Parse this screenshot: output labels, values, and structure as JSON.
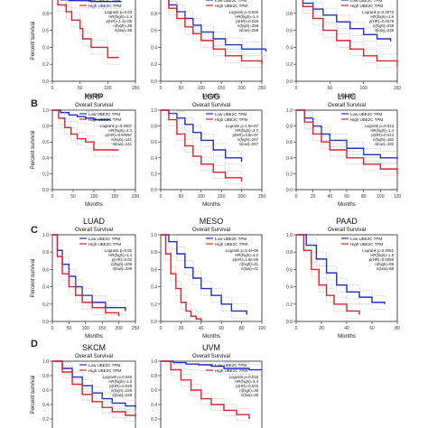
{
  "figure": {
    "panel_letters": [
      "B",
      "C",
      "D"
    ],
    "colors": {
      "low": "#1f2fbf",
      "high": "#d8232a",
      "ci": "#999999",
      "axis": "#222222"
    }
  },
  "chart_data": [
    {
      "type": "line",
      "panel": "A",
      "title": "",
      "subtitle": "",
      "xlabel": "Months",
      "ylabel": "Percent survival",
      "xlim": [
        0,
        150
      ],
      "ylim": [
        0,
        1
      ],
      "xticks": [
        0,
        50,
        100,
        150
      ],
      "legend": "top-right",
      "stats": [
        "Logrank p=0.03",
        "HR(high)=1.4",
        "p(HR)=1.1e-05",
        "n(high)=38",
        "n(low)=38"
      ],
      "series": [
        {
          "name": "Low UBE2C TPM",
          "color": "#1f2fbf",
          "x": [
            0,
            15,
            30,
            50,
            70,
            90,
            110,
            125
          ],
          "y": [
            1.0,
            0.96,
            0.95,
            0.95,
            0.94,
            0.94,
            0.94,
            0.94
          ]
        },
        {
          "name": "High UBE2C TPM",
          "color": "#d8232a",
          "x": [
            0,
            10,
            25,
            35,
            50,
            55,
            70,
            90,
            100,
            120
          ],
          "y": [
            1.0,
            0.9,
            0.82,
            0.72,
            0.62,
            0.5,
            0.4,
            0.4,
            0.28,
            0.28
          ]
        }
      ]
    },
    {
      "type": "line",
      "panel": "A",
      "title": "",
      "subtitle": "",
      "xlabel": "Months",
      "ylabel": "",
      "xlim": [
        0,
        250
      ],
      "ylim": [
        0,
        1
      ],
      "xticks": [
        0,
        50,
        100,
        150,
        200,
        250
      ],
      "legend": "top-right",
      "stats": [
        "Logrank p=0.026",
        "HR(high)=1.4",
        "p(HR)=0.028",
        "n(high)=258",
        "n(low)=258"
      ],
      "series": [
        {
          "name": "Low UBE2C TPM",
          "color": "#1f2fbf",
          "x": [
            0,
            20,
            40,
            60,
            80,
            100,
            130,
            160,
            200,
            260
          ],
          "y": [
            1.0,
            0.9,
            0.82,
            0.74,
            0.66,
            0.58,
            0.5,
            0.43,
            0.38,
            0.35
          ]
        },
        {
          "name": "High UBE2C TPM",
          "color": "#d8232a",
          "x": [
            0,
            20,
            40,
            60,
            80,
            100,
            130,
            160,
            200,
            250
          ],
          "y": [
            1.0,
            0.86,
            0.74,
            0.64,
            0.56,
            0.48,
            0.38,
            0.3,
            0.24,
            0.2
          ]
        }
      ]
    },
    {
      "type": "line",
      "panel": "A",
      "title": "",
      "subtitle": "",
      "xlabel": "Months",
      "ylabel": "",
      "xlim": [
        0,
        150
      ],
      "ylim": [
        0,
        1
      ],
      "xticks": [
        0,
        50,
        100,
        150
      ],
      "legend": "top-right",
      "stats": [
        "Logrank p=0.0073",
        "HR(high)=1.6",
        "p(HR)=0.0079",
        "n(high)=238",
        "n(low)=238"
      ],
      "series": [
        {
          "name": "Low UBE2C TPM",
          "color": "#1f2fbf",
          "x": [
            0,
            10,
            25,
            40,
            60,
            80,
            100,
            120,
            140
          ],
          "y": [
            1.0,
            0.92,
            0.85,
            0.78,
            0.7,
            0.62,
            0.55,
            0.5,
            0.47
          ]
        },
        {
          "name": "High UBE2C TPM",
          "color": "#d8232a",
          "x": [
            0,
            10,
            25,
            40,
            60,
            80,
            100,
            120,
            150
          ],
          "y": [
            1.0,
            0.88,
            0.74,
            0.6,
            0.48,
            0.38,
            0.3,
            0.24,
            0.18
          ]
        }
      ]
    },
    {
      "type": "line",
      "panel": "B",
      "title": "KIRP",
      "subtitle": "Overall Survival",
      "xlabel": "Months",
      "ylabel": "Percent survival",
      "xlim": [
        0,
        200
      ],
      "ylim": [
        0,
        1
      ],
      "xticks": [
        0,
        50,
        100,
        150,
        200
      ],
      "legend": "top-right",
      "stats": [
        "Logrank p=0.0007",
        "HR(high)=3.3",
        "p(HR)=0.00097",
        "n(high)=141",
        "n(low)=141"
      ],
      "series": [
        {
          "name": "Low UBE2C TPM",
          "color": "#1f2fbf",
          "x": [
            0,
            20,
            40,
            60,
            80,
            100,
            120,
            140
          ],
          "y": [
            1.0,
            0.97,
            0.94,
            0.92,
            0.9,
            0.88,
            0.88,
            0.88
          ]
        },
        {
          "name": "High UBE2C TPM",
          "color": "#d8232a",
          "x": [
            0,
            15,
            30,
            45,
            60,
            80,
            100,
            130,
            160
          ],
          "y": [
            1.0,
            0.9,
            0.78,
            0.7,
            0.64,
            0.6,
            0.5,
            0.5,
            0.5
          ]
        }
      ]
    },
    {
      "type": "line",
      "panel": "B",
      "title": "LGG",
      "subtitle": "Overall Survival",
      "xlabel": "Months",
      "ylabel": "",
      "xlim": [
        0,
        250
      ],
      "ylim": [
        0,
        1
      ],
      "xticks": [
        0,
        50,
        100,
        150,
        200,
        250
      ],
      "legend": "top-right",
      "stats": [
        "Logrank p=1.5e-07",
        "HR(high)=2.7",
        "p(HR)=4.5e-07",
        "n(high)=257",
        "n(low)=257"
      ],
      "series": [
        {
          "name": "Low UBE2C TPM",
          "color": "#1f2fbf",
          "x": [
            0,
            20,
            40,
            60,
            80,
            100,
            130,
            160,
            200
          ],
          "y": [
            1.0,
            0.96,
            0.9,
            0.82,
            0.72,
            0.62,
            0.5,
            0.4,
            0.35
          ]
        },
        {
          "name": "High UBE2C TPM",
          "color": "#d8232a",
          "x": [
            0,
            20,
            40,
            60,
            80,
            100,
            130,
            160,
            200
          ],
          "y": [
            1.0,
            0.88,
            0.7,
            0.55,
            0.42,
            0.32,
            0.22,
            0.15,
            0.1
          ]
        }
      ]
    },
    {
      "type": "line",
      "panel": "B",
      "title": "LIHC",
      "subtitle": "Overall Survival",
      "xlabel": "Months",
      "ylabel": "",
      "xlim": [
        0,
        120
      ],
      "ylim": [
        0,
        1
      ],
      "xticks": [
        0,
        20,
        40,
        60,
        80,
        100,
        120
      ],
      "legend": "top-right",
      "stats": [
        "Logrank p=0.013",
        "HR(high)=1.4",
        "p(HR)=0.014",
        "n(high)=182",
        "n(low)=182"
      ],
      "series": [
        {
          "name": "Low UBE2C TPM",
          "color": "#1f2fbf",
          "x": [
            0,
            10,
            20,
            30,
            40,
            60,
            80,
            100,
            120
          ],
          "y": [
            1.0,
            0.9,
            0.8,
            0.7,
            0.62,
            0.52,
            0.44,
            0.4,
            0.38
          ]
        },
        {
          "name": "High UBE2C TPM",
          "color": "#d8232a",
          "x": [
            0,
            10,
            20,
            30,
            40,
            60,
            80,
            100,
            120
          ],
          "y": [
            1.0,
            0.85,
            0.7,
            0.6,
            0.5,
            0.4,
            0.32,
            0.26,
            0.2
          ]
        }
      ]
    },
    {
      "type": "line",
      "panel": "C",
      "title": "LUAD",
      "subtitle": "Overall Survival",
      "xlabel": "Months",
      "ylabel": "Percent survival",
      "xlim": [
        0,
        250
      ],
      "ylim": [
        0,
        1
      ],
      "xticks": [
        0,
        50,
        100,
        150,
        200,
        250
      ],
      "legend": "top-right",
      "stats": [
        "Logrank p=0.02",
        "HR(high)=1.4",
        "p(HR)=0.02",
        "n(high)=239",
        "n(low)=239"
      ],
      "series": [
        {
          "name": "Low UBE2C TPM",
          "color": "#1f2fbf",
          "x": [
            0,
            15,
            30,
            50,
            70,
            90,
            120,
            160,
            220
          ],
          "y": [
            1.0,
            0.82,
            0.66,
            0.52,
            0.4,
            0.3,
            0.22,
            0.16,
            0.12
          ]
        },
        {
          "name": "High UBE2C TPM",
          "color": "#d8232a",
          "x": [
            0,
            15,
            30,
            50,
            70,
            90,
            120,
            160,
            200
          ],
          "y": [
            1.0,
            0.75,
            0.55,
            0.4,
            0.3,
            0.22,
            0.16,
            0.1,
            0.06
          ]
        }
      ]
    },
    {
      "type": "line",
      "panel": "C",
      "title": "MESO",
      "subtitle": "Overall Survival",
      "xlabel": "Months",
      "ylabel": "",
      "xlim": [
        0,
        100
      ],
      "ylim": [
        0,
        1
      ],
      "xticks": [
        0,
        20,
        40,
        60,
        80,
        100
      ],
      "legend": "top-right",
      "stats": [
        "Logrank p=5.4e-06",
        "HR(high)=3.2",
        "p(HR)=1.6e-05",
        "n(high)=41",
        "n(low)=41"
      ],
      "series": [
        {
          "name": "Low UBE2C TPM",
          "color": "#1f2fbf",
          "x": [
            0,
            8,
            16,
            24,
            32,
            40,
            50,
            60,
            70,
            85
          ],
          "y": [
            1.0,
            0.92,
            0.78,
            0.62,
            0.5,
            0.38,
            0.3,
            0.2,
            0.12,
            0.08
          ]
        },
        {
          "name": "High UBE2C TPM",
          "color": "#d8232a",
          "x": [
            0,
            5,
            10,
            15,
            20,
            25,
            30,
            35,
            40
          ],
          "y": [
            1.0,
            0.78,
            0.55,
            0.38,
            0.22,
            0.12,
            0.06,
            0.03,
            0.0
          ]
        }
      ]
    },
    {
      "type": "line",
      "panel": "C",
      "title": "PAAD",
      "subtitle": "Overall Survival",
      "xlabel": "Months",
      "ylabel": "",
      "xlim": [
        0,
        80
      ],
      "ylim": [
        0,
        1
      ],
      "xticks": [
        0,
        20,
        40,
        60,
        80
      ],
      "legend": "top-right",
      "stats": [
        "Logrank p=0.0051",
        "HR(high)=1.8",
        "p(HR)=0.0058",
        "n(high)=89",
        "n(low)=89"
      ],
      "series": [
        {
          "name": "Low UBE2C TPM",
          "color": "#1f2fbf",
          "x": [
            0,
            8,
            16,
            24,
            32,
            40,
            50,
            60,
            70
          ],
          "y": [
            1.0,
            0.88,
            0.72,
            0.56,
            0.42,
            0.34,
            0.28,
            0.22,
            0.2
          ]
        },
        {
          "name": "High UBE2C TPM",
          "color": "#d8232a",
          "x": [
            0,
            6,
            12,
            18,
            24,
            30,
            40,
            50
          ],
          "y": [
            1.0,
            0.82,
            0.6,
            0.42,
            0.3,
            0.2,
            0.12,
            0.08
          ]
        }
      ]
    },
    {
      "type": "line",
      "panel": "D",
      "title": "SKCM",
      "subtitle": "Overall Survival",
      "xlabel": "",
      "ylabel": "Percent survival",
      "xlim": [
        0,
        250
      ],
      "ylim": [
        0,
        1
      ],
      "xticks": [],
      "legend": "top-right",
      "stats": [
        "Logrank p=0.026",
        "HR(high)=1.3",
        "p(HR)=0.029",
        "n(high)=229",
        "n(low)=229"
      ],
      "series": [
        {
          "name": "Low UBE2C TPM",
          "color": "#1f2fbf",
          "x": [
            0,
            30,
            60,
            90,
            120,
            150,
            180,
            220,
            250
          ],
          "y": [
            1.0,
            0.9,
            0.78,
            0.66,
            0.56,
            0.48,
            0.42,
            0.38,
            0.36
          ]
        },
        {
          "name": "High UBE2C TPM",
          "color": "#d8232a",
          "x": [
            0,
            30,
            60,
            90,
            120,
            150,
            180,
            220,
            250
          ],
          "y": [
            1.0,
            0.85,
            0.68,
            0.54,
            0.44,
            0.36,
            0.3,
            0.25,
            0.22
          ]
        }
      ]
    },
    {
      "type": "line",
      "panel": "D",
      "title": "UVM",
      "subtitle": "Overall Survival",
      "xlabel": "",
      "ylabel": "",
      "xlim": [
        0,
        80
      ],
      "ylim": [
        0,
        1
      ],
      "xticks": [],
      "legend": "top-right",
      "stats": [
        "Logrank p=0.015",
        "HR(high)=3.4",
        "p(HR)=0.026",
        "n(high)=39",
        "n(low)=39"
      ],
      "series": [
        {
          "name": "Low UBE2C TPM",
          "color": "#1f2fbf",
          "x": [
            0,
            10,
            20,
            30,
            40,
            50,
            60,
            70,
            80
          ],
          "y": [
            1.0,
            0.98,
            0.96,
            0.95,
            0.93,
            0.9,
            0.9,
            0.88,
            0.88
          ]
        },
        {
          "name": "High UBE2C TPM",
          "color": "#d8232a",
          "x": [
            0,
            8,
            16,
            24,
            32,
            40,
            50,
            60,
            70
          ],
          "y": [
            1.0,
            0.88,
            0.74,
            0.6,
            0.48,
            0.4,
            0.32,
            0.26,
            0.2
          ]
        }
      ]
    }
  ]
}
